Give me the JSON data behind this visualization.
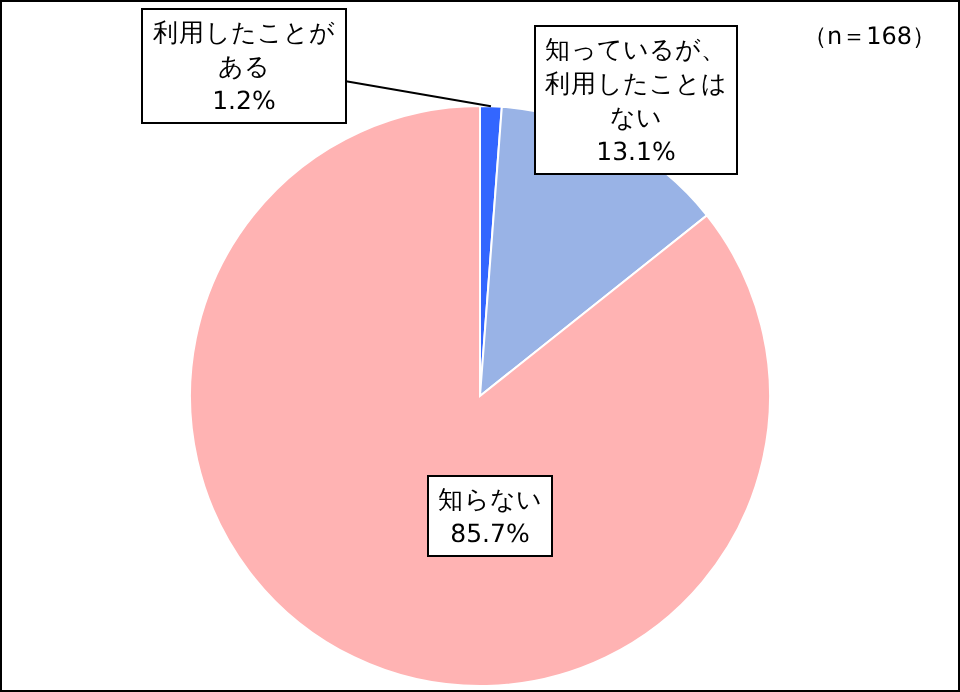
{
  "chart_data": {
    "type": "pie",
    "categories": [
      "利用したことがある",
      "知っているが、利用したことはない",
      "知らない"
    ],
    "values": [
      1.2,
      13.1,
      85.7
    ],
    "colors": [
      "#3366ff",
      "#99b3e6",
      "#ffb3b3"
    ],
    "value_labels": [
      "1.2%",
      "13.1%",
      "85.7%"
    ],
    "annotations": [
      "（n＝168）"
    ]
  }
}
